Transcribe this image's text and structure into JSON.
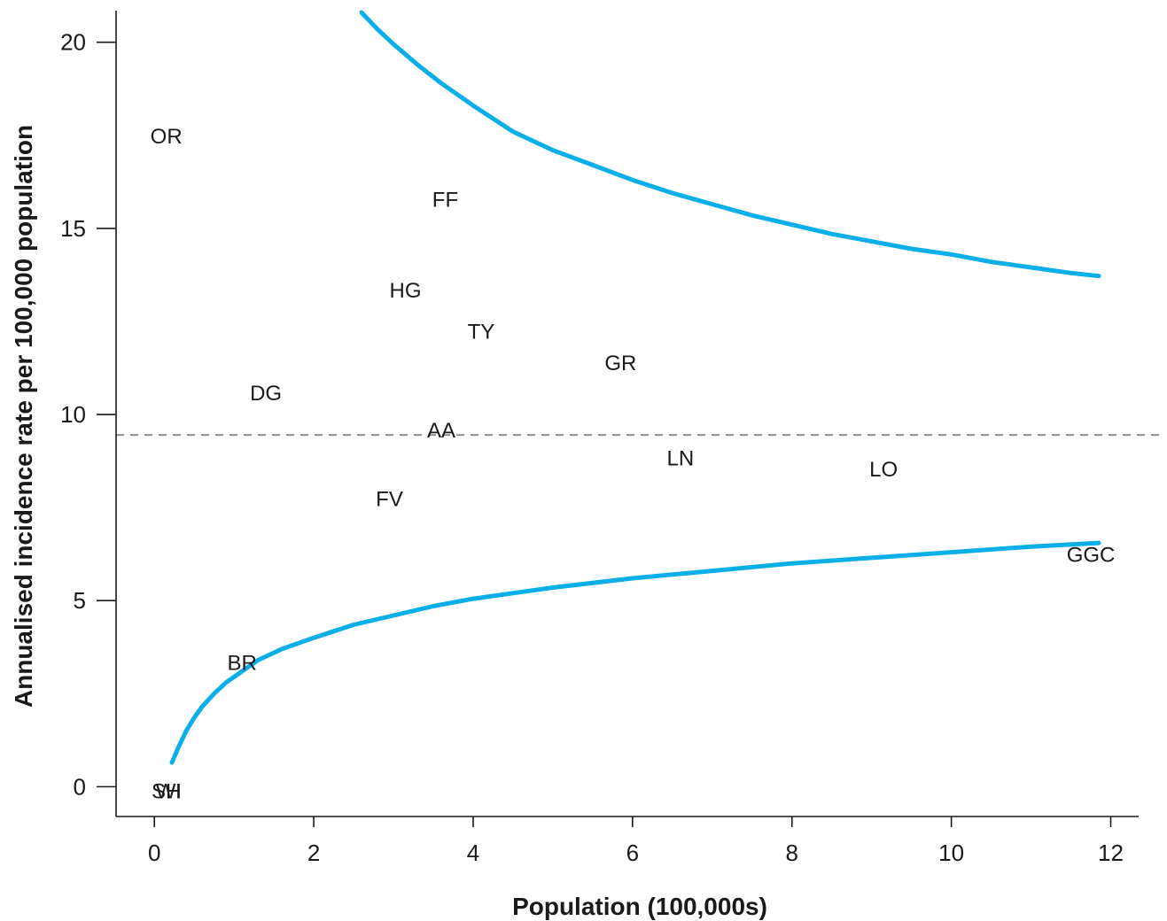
{
  "chart_data": {
    "type": "scatter",
    "xlabel": "Population (100,000s)",
    "ylabel": "Annualised incidence rate per 100,000 population",
    "xlim": [
      -0.48,
      12.35
    ],
    "ylim": [
      -0.8,
      20.85
    ],
    "x_ticks": [
      0,
      2,
      4,
      6,
      8,
      10,
      12
    ],
    "y_ticks": [
      0,
      5,
      10,
      15,
      20
    ],
    "reference_line": {
      "y": 9.45,
      "style": "dashed",
      "color": "#888888"
    },
    "points": [
      {
        "label": "OR",
        "x": 0.15,
        "y": 17.5
      },
      {
        "label": "FF",
        "x": 3.65,
        "y": 15.8
      },
      {
        "label": "HG",
        "x": 3.15,
        "y": 13.35
      },
      {
        "label": "TY",
        "x": 4.1,
        "y": 12.25
      },
      {
        "label": "GR",
        "x": 5.85,
        "y": 11.4
      },
      {
        "label": "DG",
        "x": 1.4,
        "y": 10.6
      },
      {
        "label": "AA",
        "x": 3.6,
        "y": 9.6
      },
      {
        "label": "LN",
        "x": 6.6,
        "y": 8.85
      },
      {
        "label": "LO",
        "x": 9.15,
        "y": 8.55
      },
      {
        "label": "FV",
        "x": 2.95,
        "y": 7.75
      },
      {
        "label": "GGC",
        "x": 11.75,
        "y": 6.25
      },
      {
        "label": "BR",
        "x": 1.1,
        "y": 3.35
      },
      {
        "label": "SH",
        "x": 0.15,
        "y": -0.1
      },
      {
        "label": "WI",
        "x": 0.18,
        "y": -0.1
      }
    ],
    "control_limits": {
      "color": "#0aaee8",
      "upper": [
        [
          2.6,
          20.8
        ],
        [
          2.8,
          20.35
        ],
        [
          3.0,
          19.95
        ],
        [
          3.3,
          19.4
        ],
        [
          3.6,
          18.9
        ],
        [
          4.0,
          18.3
        ],
        [
          4.5,
          17.6
        ],
        [
          5.0,
          17.1
        ],
        [
          5.5,
          16.7
        ],
        [
          6.0,
          16.3
        ],
        [
          6.5,
          15.95
        ],
        [
          7.0,
          15.65
        ],
        [
          7.5,
          15.35
        ],
        [
          8.0,
          15.1
        ],
        [
          8.5,
          14.85
        ],
        [
          9.0,
          14.65
        ],
        [
          9.5,
          14.45
        ],
        [
          10.0,
          14.3
        ],
        [
          10.5,
          14.1
        ],
        [
          11.0,
          13.95
        ],
        [
          11.5,
          13.8
        ],
        [
          11.85,
          13.72
        ]
      ],
      "lower": [
        [
          0.22,
          0.65
        ],
        [
          0.3,
          1.05
        ],
        [
          0.4,
          1.5
        ],
        [
          0.5,
          1.85
        ],
        [
          0.6,
          2.15
        ],
        [
          0.75,
          2.5
        ],
        [
          0.9,
          2.8
        ],
        [
          1.1,
          3.1
        ],
        [
          1.3,
          3.4
        ],
        [
          1.6,
          3.7
        ],
        [
          2.0,
          4.0
        ],
        [
          2.5,
          4.35
        ],
        [
          3.0,
          4.6
        ],
        [
          3.5,
          4.85
        ],
        [
          4.0,
          5.05
        ],
        [
          4.5,
          5.2
        ],
        [
          5.0,
          5.35
        ],
        [
          6.0,
          5.6
        ],
        [
          7.0,
          5.8
        ],
        [
          8.0,
          6.0
        ],
        [
          9.0,
          6.15
        ],
        [
          10.0,
          6.3
        ],
        [
          11.0,
          6.45
        ],
        [
          11.85,
          6.55
        ]
      ]
    }
  }
}
